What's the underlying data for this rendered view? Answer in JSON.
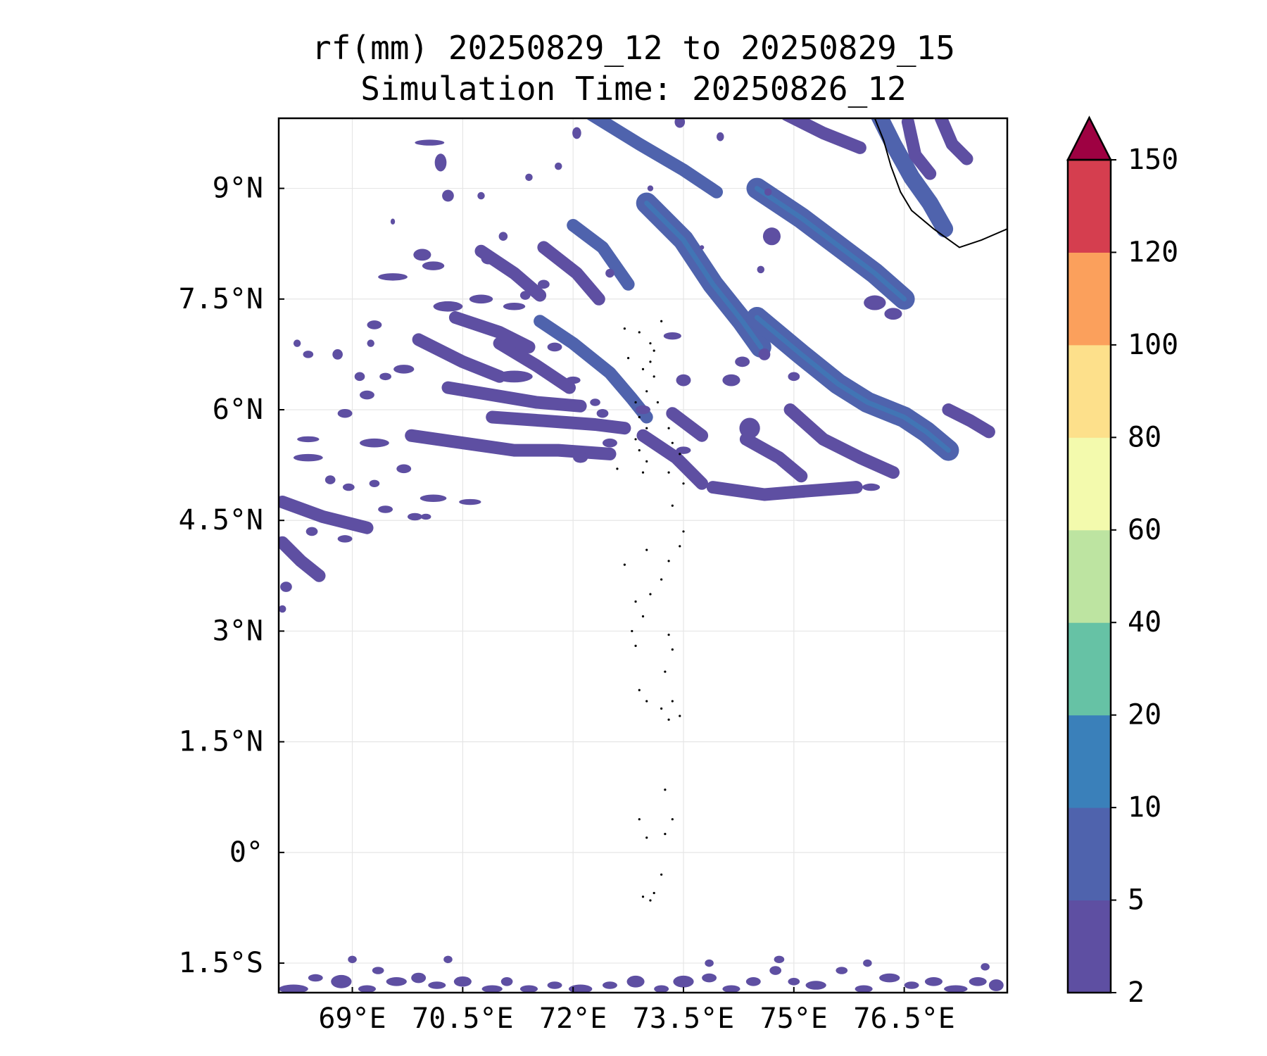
{
  "chart_data": {
    "type": "heatmap",
    "title": "rf(mm) 20250829_12 to 20250829_15",
    "subtitle": "Simulation Time: 20250826_12",
    "map_extent": {
      "lon_min": 68.0,
      "lon_max": 77.9,
      "lat_min": -1.9,
      "lat_max": 9.95
    },
    "x_ticks": [
      {
        "value": 69.0,
        "label": "69°E"
      },
      {
        "value": 70.5,
        "label": "70.5°E"
      },
      {
        "value": 72.0,
        "label": "72°E"
      },
      {
        "value": 73.5,
        "label": "73.5°E"
      },
      {
        "value": 75.0,
        "label": "75°E"
      },
      {
        "value": 76.5,
        "label": "76.5°E"
      }
    ],
    "y_ticks": [
      {
        "value": 9.0,
        "label": "9°N"
      },
      {
        "value": 7.5,
        "label": "7.5°N"
      },
      {
        "value": 6.0,
        "label": "6°N"
      },
      {
        "value": 4.5,
        "label": "4.5°N"
      },
      {
        "value": 3.0,
        "label": "3°N"
      },
      {
        "value": 1.5,
        "label": "1.5°N"
      },
      {
        "value": 0.0,
        "label": "0°"
      },
      {
        "value": -1.5,
        "label": "1.5°S"
      }
    ],
    "grid": true,
    "colorbar": {
      "placement": "right",
      "extend": "max",
      "extend_color": "#9e0142",
      "levels": [
        2,
        5,
        10,
        20,
        40,
        60,
        80,
        100,
        120,
        150
      ],
      "level_labels": [
        "2",
        "5",
        "10",
        "20",
        "40",
        "60",
        "80",
        "100",
        "120",
        "150"
      ],
      "colors": [
        "#5e4fa2",
        "#4f63ad",
        "#3a80ba",
        "#66c2a5",
        "#bde4a1",
        "#f3faad",
        "#fde08b",
        "#fba05c",
        "#d53e4f"
      ]
    },
    "rain_bands": [
      {
        "pts": [
          [
            72.25,
            10.0
          ],
          [
            72.9,
            9.6
          ],
          [
            73.5,
            9.25
          ],
          [
            73.95,
            8.95
          ]
        ],
        "mm": 5
      },
      {
        "pts": [
          [
            73.0,
            8.8
          ],
          [
            73.5,
            8.3
          ],
          [
            73.9,
            7.7
          ],
          [
            74.3,
            7.2
          ],
          [
            74.55,
            6.85
          ]
        ],
        "mm": 8
      },
      {
        "pts": [
          [
            72.0,
            8.5
          ],
          [
            72.4,
            8.2
          ],
          [
            72.75,
            7.7
          ]
        ],
        "mm": 5
      },
      {
        "pts": [
          [
            71.6,
            8.2
          ],
          [
            72.05,
            7.85
          ],
          [
            72.35,
            7.5
          ]
        ],
        "mm": 4
      },
      {
        "pts": [
          [
            71.55,
            7.2
          ],
          [
            72.0,
            6.9
          ],
          [
            72.5,
            6.5
          ],
          [
            72.8,
            6.15
          ],
          [
            73.0,
            5.9
          ]
        ],
        "mm": 5
      },
      {
        "pts": [
          [
            70.75,
            8.15
          ],
          [
            71.2,
            7.85
          ],
          [
            71.55,
            7.55
          ]
        ],
        "mm": 4
      },
      {
        "pts": [
          [
            74.5,
            9.0
          ],
          [
            75.1,
            8.6
          ],
          [
            75.7,
            8.15
          ],
          [
            76.1,
            7.85
          ],
          [
            76.5,
            7.5
          ]
        ],
        "mm": 8
      },
      {
        "pts": [
          [
            74.5,
            7.25
          ],
          [
            75.1,
            6.75
          ],
          [
            75.6,
            6.35
          ],
          [
            76.0,
            6.1
          ],
          [
            76.5,
            5.9
          ],
          [
            76.8,
            5.7
          ],
          [
            77.1,
            5.45
          ]
        ],
        "mm": 8
      },
      {
        "pts": [
          [
            77.1,
            6.0
          ],
          [
            77.4,
            5.85
          ],
          [
            77.65,
            5.7
          ]
        ],
        "mm": 4
      },
      {
        "pts": [
          [
            74.9,
            10.0
          ],
          [
            75.4,
            9.75
          ],
          [
            75.9,
            9.55
          ]
        ],
        "mm": 4
      },
      {
        "pts": [
          [
            76.15,
            10.0
          ],
          [
            76.35,
            9.6
          ],
          [
            76.6,
            9.15
          ],
          [
            76.85,
            8.8
          ],
          [
            77.05,
            8.45
          ]
        ],
        "mm": 6
      },
      {
        "pts": [
          [
            76.55,
            9.9
          ],
          [
            76.65,
            9.45
          ],
          [
            76.85,
            9.2
          ]
        ],
        "mm": 4
      },
      {
        "pts": [
          [
            77.0,
            9.95
          ],
          [
            77.15,
            9.6
          ],
          [
            77.35,
            9.4
          ]
        ],
        "mm": 4
      },
      {
        "pts": [
          [
            70.9,
            5.9
          ],
          [
            71.6,
            5.85
          ],
          [
            72.3,
            5.8
          ],
          [
            72.7,
            5.75
          ]
        ],
        "mm": 4
      },
      {
        "pts": [
          [
            72.95,
            5.65
          ],
          [
            73.4,
            5.35
          ],
          [
            73.75,
            5.0
          ]
        ],
        "mm": 4
      },
      {
        "pts": [
          [
            74.35,
            5.6
          ],
          [
            74.8,
            5.35
          ],
          [
            75.1,
            5.1
          ]
        ],
        "mm": 4
      },
      {
        "pts": [
          [
            74.95,
            6.0
          ],
          [
            75.4,
            5.6
          ],
          [
            75.9,
            5.35
          ],
          [
            76.35,
            5.15
          ]
        ],
        "mm": 4
      },
      {
        "pts": [
          [
            73.35,
            5.95
          ],
          [
            73.75,
            5.65
          ]
        ],
        "mm": 4
      },
      {
        "pts": [
          [
            73.9,
            4.95
          ],
          [
            74.6,
            4.85
          ],
          [
            75.2,
            4.9
          ],
          [
            75.85,
            4.95
          ]
        ],
        "mm": 4
      },
      {
        "pts": [
          [
            69.8,
            5.65
          ],
          [
            70.5,
            5.55
          ],
          [
            71.2,
            5.45
          ],
          [
            71.8,
            5.45
          ],
          [
            72.5,
            5.4
          ]
        ],
        "mm": 4
      },
      {
        "pts": [
          [
            69.9,
            6.95
          ],
          [
            70.5,
            6.65
          ],
          [
            71.0,
            6.45
          ]
        ],
        "mm": 4
      },
      {
        "pts": [
          [
            71.0,
            6.9
          ],
          [
            71.5,
            6.6
          ],
          [
            71.95,
            6.3
          ]
        ],
        "mm": 4
      },
      {
        "pts": [
          [
            70.3,
            6.3
          ],
          [
            70.9,
            6.2
          ],
          [
            71.5,
            6.1
          ],
          [
            72.1,
            6.05
          ]
        ],
        "mm": 4
      },
      {
        "pts": [
          [
            70.4,
            7.25
          ],
          [
            71.0,
            7.05
          ],
          [
            71.4,
            6.85
          ]
        ],
        "mm": 4
      },
      {
        "pts": [
          [
            68.05,
            4.75
          ],
          [
            68.6,
            4.55
          ],
          [
            69.2,
            4.4
          ]
        ],
        "mm": 4
      },
      {
        "pts": [
          [
            68.05,
            4.2
          ],
          [
            68.3,
            3.95
          ],
          [
            68.55,
            3.75
          ]
        ],
        "mm": 4
      }
    ],
    "rain_cells": [
      [
        70.2,
        9.35,
        0.08,
        0.12
      ],
      [
        70.3,
        8.9,
        0.08,
        0.08
      ],
      [
        69.95,
        8.1,
        0.12,
        0.08
      ],
      [
        69.55,
        7.8,
        0.2,
        0.05
      ],
      [
        69.3,
        7.15,
        0.1,
        0.06
      ],
      [
        68.8,
        6.75,
        0.07,
        0.07
      ],
      [
        68.4,
        6.75,
        0.07,
        0.05
      ],
      [
        69.1,
        6.45,
        0.07,
        0.06
      ],
      [
        69.45,
        6.45,
        0.08,
        0.05
      ],
      [
        69.7,
        6.55,
        0.14,
        0.06
      ],
      [
        69.2,
        6.2,
        0.1,
        0.06
      ],
      [
        70.1,
        7.95,
        0.15,
        0.06
      ],
      [
        70.3,
        7.4,
        0.2,
        0.07
      ],
      [
        70.75,
        7.5,
        0.16,
        0.06
      ],
      [
        71.2,
        7.4,
        0.15,
        0.05
      ],
      [
        71.2,
        6.45,
        0.25,
        0.08
      ],
      [
        72.0,
        6.4,
        0.1,
        0.05
      ],
      [
        70.85,
        8.05,
        0.1,
        0.08
      ],
      [
        71.35,
        7.55,
        0.07,
        0.06
      ],
      [
        72.5,
        7.85,
        0.06,
        0.06
      ],
      [
        72.0,
        6.05,
        0.15,
        0.06
      ],
      [
        72.3,
        6.1,
        0.07,
        0.05
      ],
      [
        72.1,
        5.35,
        0.1,
        0.07
      ],
      [
        69.3,
        5.55,
        0.2,
        0.06
      ],
      [
        68.9,
        5.95,
        0.1,
        0.06
      ],
      [
        68.4,
        5.35,
        0.2,
        0.05
      ],
      [
        68.7,
        5.05,
        0.07,
        0.06
      ],
      [
        68.95,
        4.95,
        0.08,
        0.05
      ],
      [
        69.3,
        5.0,
        0.07,
        0.05
      ],
      [
        69.7,
        5.2,
        0.1,
        0.06
      ],
      [
        70.1,
        4.8,
        0.18,
        0.05
      ],
      [
        69.45,
        4.65,
        0.1,
        0.05
      ],
      [
        69.85,
        4.55,
        0.1,
        0.05
      ],
      [
        68.45,
        4.35,
        0.08,
        0.06
      ],
      [
        68.9,
        4.25,
        0.1,
        0.05
      ],
      [
        68.1,
        3.6,
        0.08,
        0.07
      ],
      [
        68.05,
        3.3,
        0.05,
        0.05
      ],
      [
        70.6,
        4.75,
        0.15,
        0.04
      ],
      [
        68.4,
        5.6,
        0.15,
        0.04
      ],
      [
        73.35,
        7.0,
        0.12,
        0.05
      ],
      [
        73.5,
        6.4,
        0.1,
        0.08
      ],
      [
        74.15,
        6.4,
        0.12,
        0.08
      ],
      [
        74.3,
        6.65,
        0.1,
        0.07
      ],
      [
        74.6,
        6.75,
        0.08,
        0.08
      ],
      [
        75.0,
        6.45,
        0.08,
        0.06
      ],
      [
        74.4,
        5.75,
        0.14,
        0.14
      ],
      [
        73.5,
        5.45,
        0.1,
        0.05
      ],
      [
        76.1,
        7.45,
        0.15,
        0.1
      ],
      [
        76.35,
        7.3,
        0.12,
        0.08
      ],
      [
        74.7,
        8.35,
        0.12,
        0.12
      ],
      [
        74.65,
        8.95,
        0.05,
        0.05
      ],
      [
        74.55,
        7.9,
        0.05,
        0.05
      ],
      [
        74.0,
        9.7,
        0.05,
        0.06
      ],
      [
        73.45,
        9.9,
        0.07,
        0.08
      ],
      [
        72.05,
        9.75,
        0.06,
        0.08
      ],
      [
        71.8,
        9.3,
        0.05,
        0.05
      ],
      [
        71.05,
        8.35,
        0.06,
        0.06
      ],
      [
        71.6,
        7.7,
        0.08,
        0.06
      ],
      [
        70.75,
        8.9,
        0.05,
        0.05
      ],
      [
        71.4,
        9.15,
        0.05,
        0.05
      ],
      [
        70.05,
        9.62,
        0.2,
        0.04
      ],
      [
        71.75,
        6.85,
        0.1,
        0.06
      ],
      [
        72.4,
        5.95,
        0.08,
        0.06
      ],
      [
        72.5,
        5.55,
        0.1,
        0.06
      ],
      [
        76.05,
        4.95,
        0.12,
        0.05
      ],
      [
        70.0,
        4.55,
        0.07,
        0.04
      ],
      [
        69.55,
        8.55,
        0.03,
        0.04
      ],
      [
        73.05,
        9.0,
        0.04,
        0.04
      ],
      [
        73.75,
        8.2,
        0.03,
        0.03
      ],
      [
        72.95,
        6.0,
        0.1,
        0.06
      ],
      [
        69.25,
        6.9,
        0.05,
        0.05
      ],
      [
        68.25,
        6.9,
        0.05,
        0.05
      ]
    ],
    "rain_cells_south": [
      [
        68.2,
        -1.85,
        0.2,
        0.06
      ],
      [
        68.5,
        -1.7,
        0.1,
        0.05
      ],
      [
        68.85,
        -1.75,
        0.14,
        0.09
      ],
      [
        69.2,
        -1.85,
        0.12,
        0.05
      ],
      [
        69.35,
        -1.6,
        0.08,
        0.05
      ],
      [
        69.6,
        -1.75,
        0.14,
        0.06
      ],
      [
        69.9,
        -1.7,
        0.1,
        0.07
      ],
      [
        70.15,
        -1.8,
        0.12,
        0.05
      ],
      [
        70.5,
        -1.75,
        0.12,
        0.07
      ],
      [
        70.9,
        -1.85,
        0.14,
        0.05
      ],
      [
        71.1,
        -1.75,
        0.08,
        0.06
      ],
      [
        71.4,
        -1.85,
        0.12,
        0.05
      ],
      [
        71.75,
        -1.8,
        0.1,
        0.05
      ],
      [
        72.1,
        -1.85,
        0.16,
        0.06
      ],
      [
        72.5,
        -1.8,
        0.1,
        0.05
      ],
      [
        72.85,
        -1.75,
        0.12,
        0.08
      ],
      [
        73.2,
        -1.85,
        0.1,
        0.05
      ],
      [
        73.5,
        -1.75,
        0.14,
        0.08
      ],
      [
        73.85,
        -1.7,
        0.1,
        0.06
      ],
      [
        74.15,
        -1.85,
        0.12,
        0.05
      ],
      [
        74.45,
        -1.75,
        0.1,
        0.06
      ],
      [
        74.75,
        -1.6,
        0.08,
        0.06
      ],
      [
        75.0,
        -1.75,
        0.08,
        0.05
      ],
      [
        75.3,
        -1.8,
        0.14,
        0.06
      ],
      [
        75.65,
        -1.6,
        0.08,
        0.05
      ],
      [
        75.95,
        -1.85,
        0.12,
        0.05
      ],
      [
        76.3,
        -1.7,
        0.14,
        0.06
      ],
      [
        76.6,
        -1.8,
        0.1,
        0.05
      ],
      [
        76.9,
        -1.75,
        0.12,
        0.06
      ],
      [
        77.2,
        -1.85,
        0.16,
        0.05
      ],
      [
        77.5,
        -1.75,
        0.12,
        0.06
      ],
      [
        77.75,
        -1.8,
        0.1,
        0.08
      ],
      [
        69.0,
        -1.45,
        0.06,
        0.05
      ],
      [
        70.3,
        -1.45,
        0.06,
        0.05
      ],
      [
        73.85,
        -1.5,
        0.06,
        0.05
      ],
      [
        74.8,
        -1.45,
        0.07,
        0.05
      ],
      [
        76.0,
        -1.5,
        0.06,
        0.05
      ],
      [
        77.6,
        -1.55,
        0.06,
        0.05
      ]
    ],
    "coastline": [
      [
        76.1,
        9.95
      ],
      [
        76.22,
        9.65
      ],
      [
        76.32,
        9.3
      ],
      [
        76.45,
        8.95
      ],
      [
        76.6,
        8.7
      ],
      [
        76.9,
        8.45
      ],
      [
        77.25,
        8.2
      ],
      [
        77.55,
        8.3
      ],
      [
        77.9,
        8.45
      ]
    ],
    "islands": [
      [
        72.9,
        7.05
      ],
      [
        73.05,
        6.9
      ],
      [
        73.1,
        6.8
      ],
      [
        73.05,
        6.65
      ],
      [
        72.95,
        6.55
      ],
      [
        73.1,
        6.45
      ],
      [
        73.0,
        6.25
      ],
      [
        72.85,
        6.1
      ],
      [
        72.9,
        5.9
      ],
      [
        73.0,
        5.75
      ],
      [
        72.85,
        5.6
      ],
      [
        72.9,
        5.45
      ],
      [
        73.0,
        5.3
      ],
      [
        72.95,
        5.15
      ],
      [
        73.35,
        5.55
      ],
      [
        73.45,
        5.4
      ],
      [
        73.3,
        5.15
      ],
      [
        73.5,
        5.0
      ],
      [
        73.35,
        4.7
      ],
      [
        73.5,
        4.35
      ],
      [
        73.45,
        4.15
      ],
      [
        73.3,
        3.95
      ],
      [
        73.2,
        3.7
      ],
      [
        73.05,
        3.5
      ],
      [
        72.85,
        3.4
      ],
      [
        72.95,
        3.2
      ],
      [
        72.8,
        3.0
      ],
      [
        72.85,
        2.8
      ],
      [
        73.3,
        2.95
      ],
      [
        73.35,
        2.75
      ],
      [
        73.25,
        2.45
      ],
      [
        72.9,
        2.2
      ],
      [
        73.0,
        2.05
      ],
      [
        73.35,
        2.05
      ],
      [
        73.45,
        1.85
      ],
      [
        73.3,
        1.8
      ],
      [
        73.2,
        1.95
      ],
      [
        73.25,
        0.85
      ],
      [
        73.35,
        0.45
      ],
      [
        73.25,
        0.25
      ],
      [
        73.0,
        0.2
      ],
      [
        72.9,
        0.45
      ],
      [
        73.2,
        -0.3
      ],
      [
        72.95,
        -0.6
      ],
      [
        73.05,
        -0.65
      ],
      [
        73.1,
        -0.55
      ],
      [
        73.2,
        7.2
      ],
      [
        72.7,
        7.1
      ],
      [
        72.75,
        6.7
      ],
      [
        73.15,
        6.1
      ],
      [
        73.3,
        5.75
      ],
      [
        72.6,
        5.2
      ],
      [
        73.0,
        4.1
      ],
      [
        72.7,
        3.9
      ]
    ]
  }
}
